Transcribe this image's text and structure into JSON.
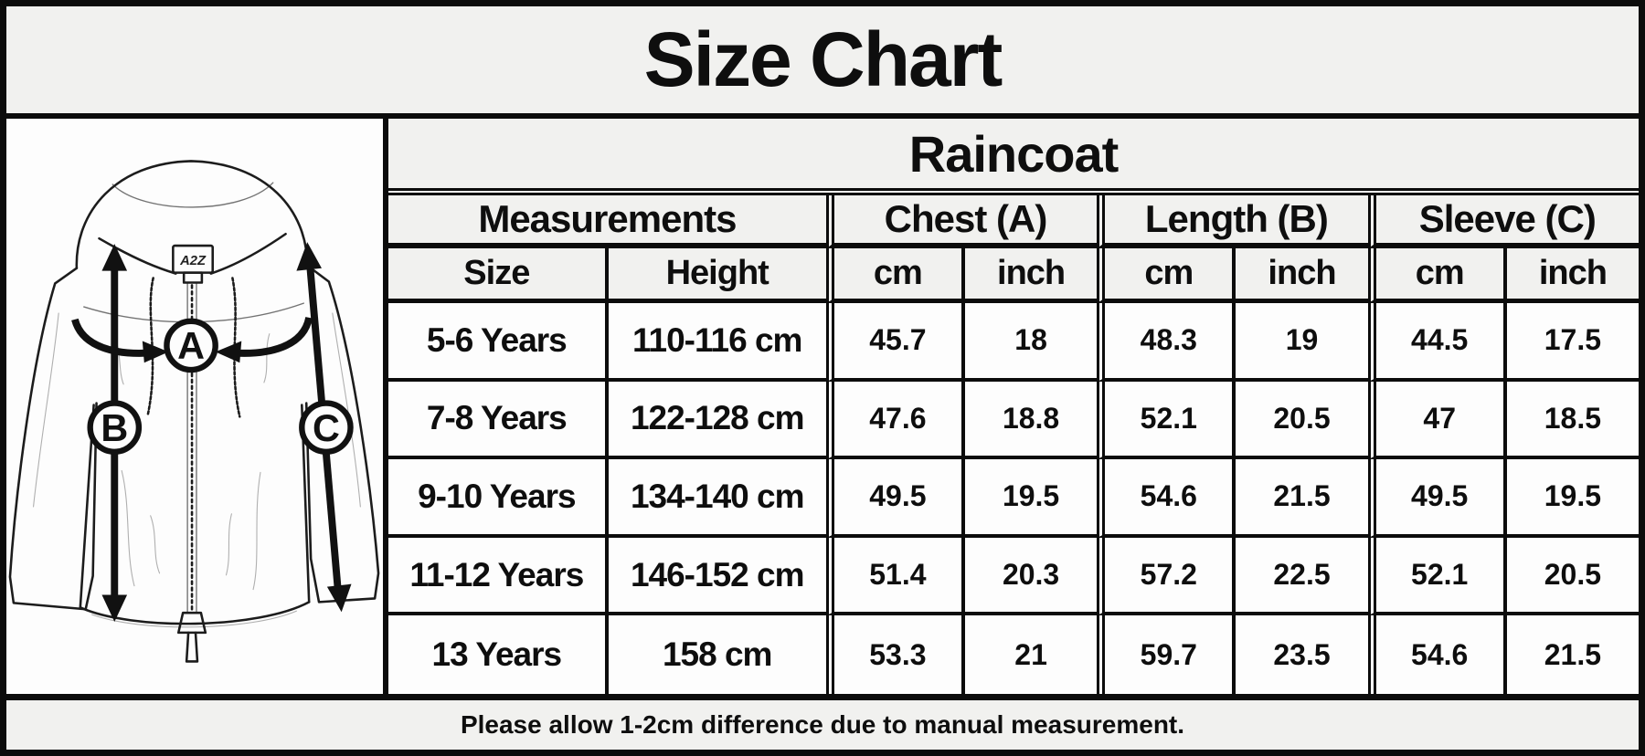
{
  "title": "Size Chart",
  "product": "Raincoat",
  "note": "Please allow 1-2cm difference due to manual measurement.",
  "diagram": {
    "brand_label": "A2Z",
    "markers": {
      "chest": "A",
      "length": "B",
      "sleeve": "C"
    }
  },
  "table": {
    "group_headers": [
      {
        "label": "Measurements",
        "span": 2
      },
      {
        "label": "Chest (A)",
        "span": 2
      },
      {
        "label": "Length (B)",
        "span": 2
      },
      {
        "label": "Sleeve (C)",
        "span": 2
      }
    ],
    "sub_headers": [
      "Size",
      "Height",
      "cm",
      "inch",
      "cm",
      "inch",
      "cm",
      "inch"
    ],
    "rows": [
      [
        "5-6 Years",
        "110-116 cm",
        "45.7",
        "18",
        "48.3",
        "19",
        "44.5",
        "17.5"
      ],
      [
        "7-8 Years",
        "122-128 cm",
        "47.6",
        "18.8",
        "52.1",
        "20.5",
        "47",
        "18.5"
      ],
      [
        "9-10 Years",
        "134-140 cm",
        "49.5",
        "19.5",
        "54.6",
        "21.5",
        "49.5",
        "19.5"
      ],
      [
        "11-12 Years",
        "146-152 cm",
        "51.4",
        "20.3",
        "57.2",
        "22.5",
        "52.1",
        "20.5"
      ],
      [
        "13 Years",
        "158 cm",
        "53.3",
        "21",
        "59.7",
        "23.5",
        "54.6",
        "21.5"
      ]
    ]
  },
  "colors": {
    "background": "#f1f1ef",
    "cell_background": "#fdfdfd",
    "border": "#0c0c0c",
    "text": "#0e0e0e"
  }
}
